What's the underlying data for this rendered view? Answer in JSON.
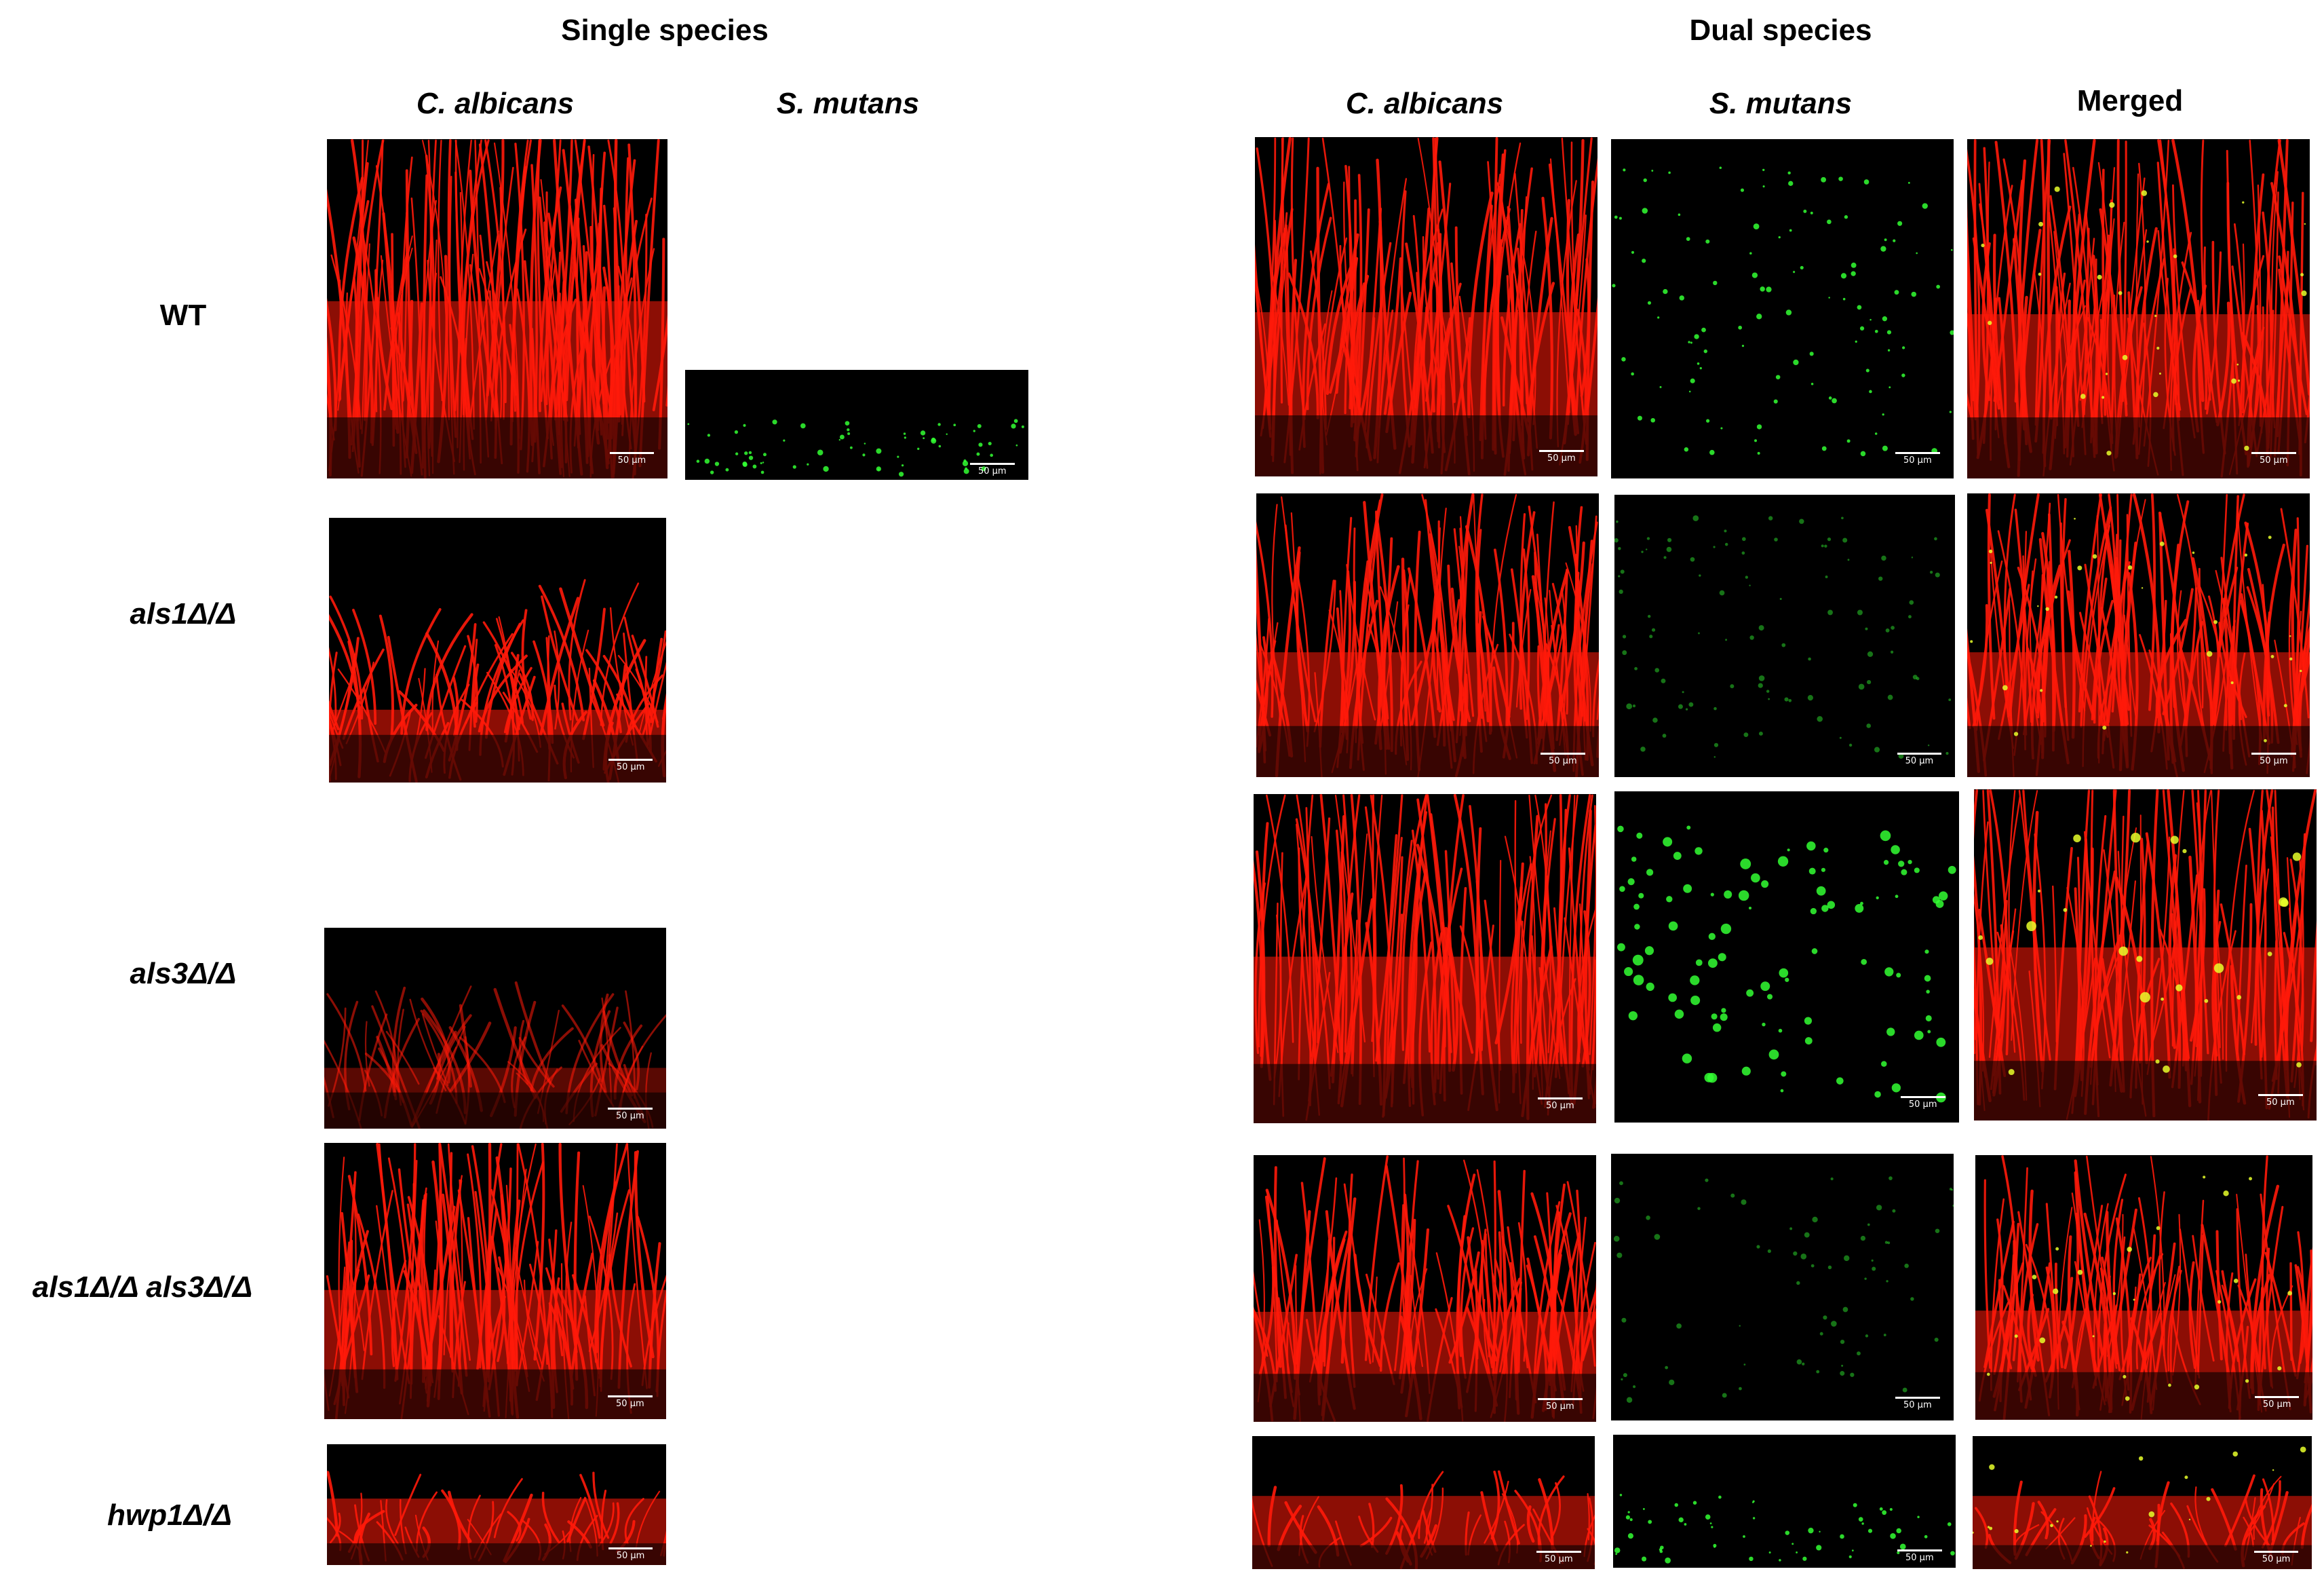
{
  "group_headers": {
    "single": "Single species",
    "dual": "Dual species"
  },
  "column_headers": {
    "single_ca": "C. albicans",
    "single_sm": "S. mutans",
    "dual_ca": "C. albicans",
    "dual_sm": "S. mutans",
    "dual_merged": "Merged"
  },
  "row_labels": {
    "wt": "WT",
    "als1": "als1Δ/Δ",
    "als3": "als3Δ/Δ",
    "als1als3": "als1Δ/Δ als3Δ/Δ",
    "hwp1": "hwp1Δ/Δ"
  },
  "scale_bar_label": "50 µm",
  "channel_colors": {
    "candida": "#ff1a0a",
    "streptococcus": "#33ff33",
    "merged_overlap": "#e8ff2a",
    "background": "#000000"
  }
}
